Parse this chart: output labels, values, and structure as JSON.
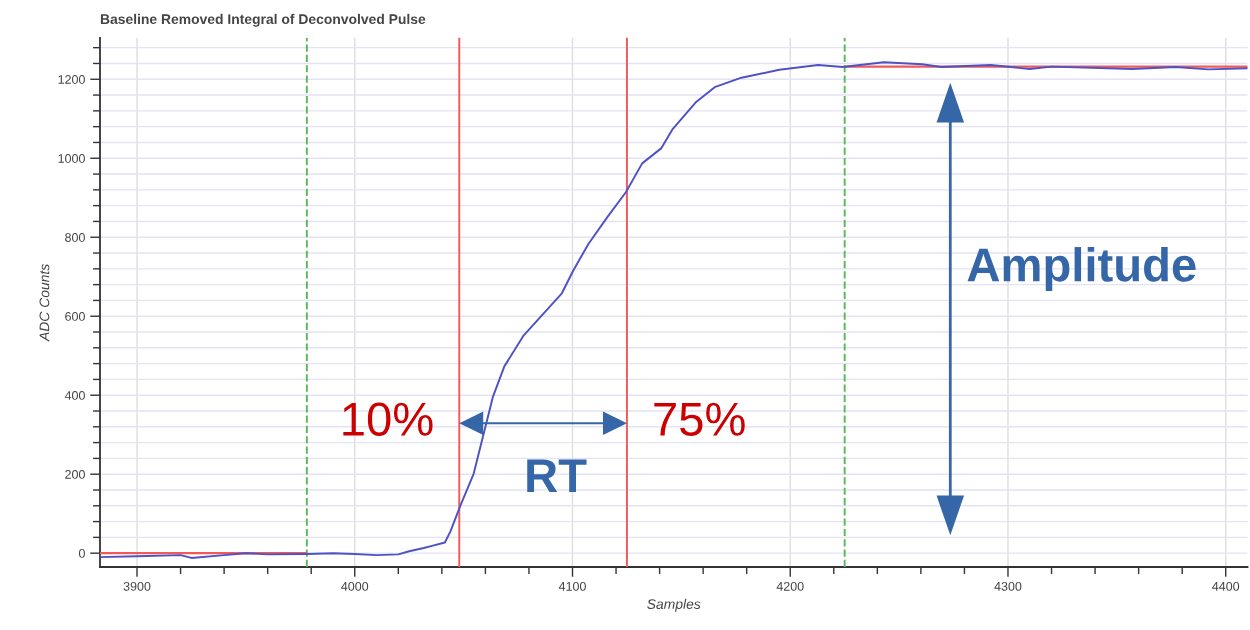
{
  "chart_data": {
    "type": "line",
    "title": "Baseline Removed Integral of Deconvolved Pulse",
    "xlabel": "Samples",
    "ylabel": "ADC Counts",
    "xlim": [
      3883,
      4410
    ],
    "ylim": [
      -35,
      1305
    ],
    "xticks": [
      3900,
      {
        "value": 3920,
        "label": null
      },
      {
        "value": 3940,
        "label": null
      },
      {
        "value": 3960,
        "label": null
      },
      {
        "value": 3980,
        "label": null
      },
      4000,
      {
        "value": 4020,
        "label": null
      },
      {
        "value": 4040,
        "label": null
      },
      {
        "value": 4060,
        "label": null
      },
      {
        "value": 4080,
        "label": null
      },
      4100,
      {
        "value": 4120,
        "label": null
      },
      {
        "value": 4140,
        "label": null
      },
      {
        "value": 4160,
        "label": null
      },
      {
        "value": 4180,
        "label": null
      },
      4200,
      {
        "value": 4220,
        "label": null
      },
      {
        "value": 4240,
        "label": null
      },
      {
        "value": 4260,
        "label": null
      },
      {
        "value": 4280,
        "label": null
      },
      4300,
      {
        "value": 4320,
        "label": null
      },
      {
        "value": 4340,
        "label": null
      },
      {
        "value": 4360,
        "label": null
      },
      {
        "value": 4380,
        "label": null
      },
      4400
    ],
    "yticks": [
      0,
      {
        "value": 40,
        "label": null
      },
      {
        "value": 80,
        "label": null
      },
      {
        "value": 120,
        "label": null
      },
      {
        "value": 160,
        "label": null
      },
      200,
      {
        "value": 240,
        "label": null
      },
      {
        "value": 280,
        "label": null
      },
      {
        "value": 320,
        "label": null
      },
      {
        "value": 360,
        "label": null
      },
      400,
      {
        "value": 440,
        "label": null
      },
      {
        "value": 480,
        "label": null
      },
      {
        "value": 520,
        "label": null
      },
      {
        "value": 560,
        "label": null
      },
      600,
      {
        "value": 640,
        "label": null
      },
      {
        "value": 680,
        "label": null
      },
      {
        "value": 720,
        "label": null
      },
      {
        "value": 760,
        "label": null
      },
      800,
      {
        "value": 840,
        "label": null
      },
      {
        "value": 880,
        "label": null
      },
      {
        "value": 920,
        "label": null
      },
      {
        "value": 960,
        "label": null
      },
      1000,
      {
        "value": 1040,
        "label": null
      },
      {
        "value": 1080,
        "label": null
      },
      {
        "value": 1120,
        "label": null
      },
      {
        "value": 1160,
        "label": null
      },
      1200,
      {
        "value": 1240,
        "label": null
      },
      {
        "value": 1280,
        "label": null
      }
    ],
    "grid": true,
    "legend": false,
    "series": [
      {
        "color": "#4f52c4",
        "x": [
          3883,
          3900,
          3920,
          3925,
          3940,
          3950,
          3960,
          3978,
          3990,
          4000,
          4010,
          4020,
          4025,
          4031.7,
          4035,
          4041.4,
          4044,
          4048.4,
          4054.6,
          4059,
          4063.4,
          4068.7,
          4077.4,
          4095,
          4100.3,
          4107.3,
          4116,
          4124.5,
          4132,
          4140.7,
          4146,
          4156.5,
          4165.3,
          4177.6,
          4195,
          4212.8,
          4224,
          4243,
          4260.6,
          4269.4,
          4292,
          4310,
          4320,
          4357,
          4377,
          4392,
          4410
        ],
        "values": [
          -10,
          -8,
          -5,
          -12,
          -5,
          0,
          -3,
          -2,
          0,
          -2,
          -5,
          -3,
          5,
          13,
          18,
          27,
          56,
          119,
          201,
          298,
          395,
          473,
          550,
          657,
          715,
          783,
          851,
          914,
          987,
          1025,
          1074,
          1141,
          1180,
          1204,
          1224,
          1236,
          1231,
          1243,
          1238,
          1231,
          1236,
          1226,
          1232,
          1226,
          1231,
          1225,
          1228
        ]
      },
      {
        "color": "#f25a5a",
        "x": [
          3883,
          3978
        ],
        "values": [
          0,
          0
        ]
      },
      {
        "color": "#f25a5a",
        "x": [
          4225,
          4410
        ],
        "values": [
          1232,
          1232
        ]
      }
    ],
    "ref_lines": [
      {
        "axis": "x",
        "value": 3978,
        "color": "#5cb85c",
        "line_style": "dashed"
      },
      {
        "axis": "x",
        "value": 4048,
        "color": "#f25a5a",
        "line_style": "solid"
      },
      {
        "axis": "x",
        "value": 4125,
        "color": "#f25a5a",
        "line_style": "solid"
      },
      {
        "axis": "x",
        "value": 4225,
        "color": "#5cb85c",
        "line_style": "dashed"
      }
    ],
    "annotations": [
      {
        "text": "10%",
        "x": 4048,
        "y": 329
      },
      {
        "text": "75%",
        "x": 4125,
        "y": 329
      },
      "RT",
      "Amplitude"
    ]
  }
}
